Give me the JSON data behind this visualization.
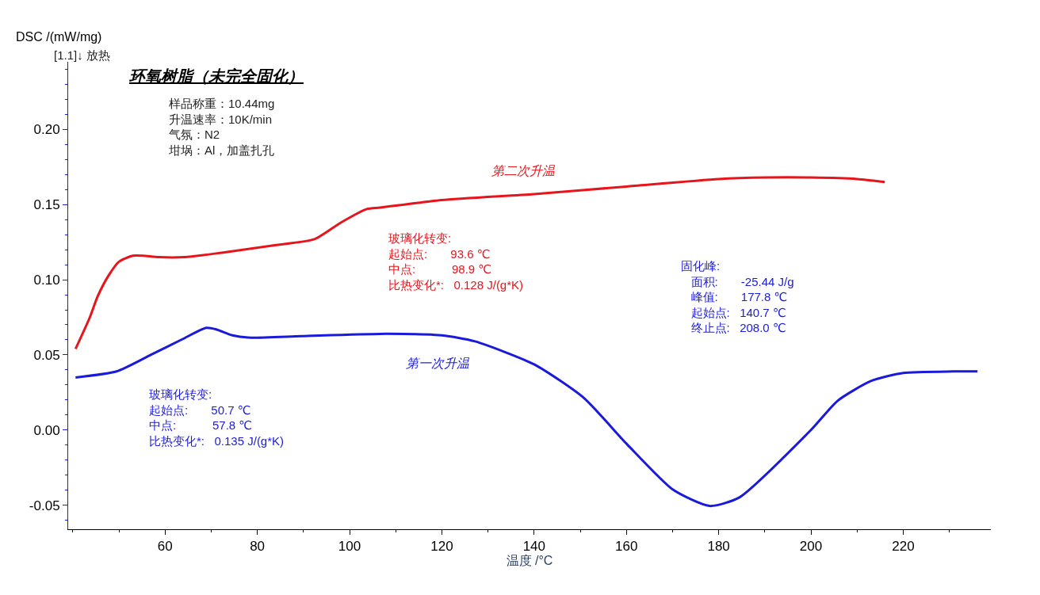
{
  "chart_data": {
    "type": "line",
    "title": "环氧树脂（未完全固化）",
    "xlabel": "温度 /°C",
    "ylabel": "DSC /(mW/mg)",
    "xlim": [
      39,
      239
    ],
    "xticks": [
      60,
      80,
      100,
      120,
      140,
      160,
      180,
      200,
      220
    ],
    "ylim": [
      -0.066,
      0.245
    ],
    "yticks": [
      -0.05,
      {
        "value": 0.0,
        "label": "0.00"
      },
      0.05,
      {
        "value": 0.1,
        "label": "0.10"
      },
      0.15,
      {
        "value": 0.2,
        "label": "0.20"
      }
    ],
    "legend": false,
    "marker": "none",
    "line_style": "solid",
    "series": [
      {
        "name": "第二次升温",
        "color": "#e8141b",
        "x": [
          40.6,
          43.7,
          45.4,
          47.8,
          50.0,
          53.0,
          55.2,
          58.6,
          64.3,
          72.3,
          83.8,
          92.4,
          98.1,
          103.7,
          106.6,
          120,
          140,
          160,
          180,
          190,
          200,
          210,
          216
        ],
        "values": [
          0.054,
          0.075,
          0.089,
          0.103,
          0.112,
          0.116,
          0.116,
          0.115,
          0.115,
          0.118,
          0.123,
          0.127,
          0.138,
          0.147,
          0.148,
          0.153,
          0.157,
          0.162,
          0.167,
          0.168,
          0.168,
          0.167,
          0.165
        ]
      },
      {
        "name": "第一次升温",
        "color": "#1a1adc",
        "x": [
          40.6,
          49.5,
          56.9,
          63.8,
          68.9,
          71.1,
          74.6,
          78.0,
          89.5,
          106.6,
          120,
          127.2,
          140,
          150.7,
          160,
          170.1,
          178,
          184.4,
          200,
          205.8,
          213,
          220,
          230.8,
          236.1
        ],
        "values": [
          0.035,
          0.039,
          0.05,
          0.0605,
          0.068,
          0.067,
          0.063,
          0.0615,
          0.0625,
          0.064,
          0.063,
          0.059,
          0.0437,
          0.0216,
          -0.009,
          -0.0397,
          -0.0505,
          -0.045,
          0.0,
          0.0195,
          0.0326,
          0.038,
          0.039,
          0.039
        ]
      }
    ],
    "annotations": [
      "[1.1]↓ 放热",
      "样品称重：10.44mg\n升温速率：10K/min\n气氛：N2\n坩埚：Al，加盖扎孔",
      "玻璃化转变:\n起始点:       93.6 ℃\n中点:           98.9 ℃\n比热变化*:   0.128 J/(g*K)",
      "玻璃化转变:\n起始点:       50.7 ℃\n中点:           57.8 ℃\n比热变化*:   0.135 J/(g*K)",
      "固化峰:\n   面积:       -25.44 J/g\n   峰值:       177.8 ℃\n   起始点:   140.7 ℃\n   终止点:   208.0 ℃"
    ]
  }
}
